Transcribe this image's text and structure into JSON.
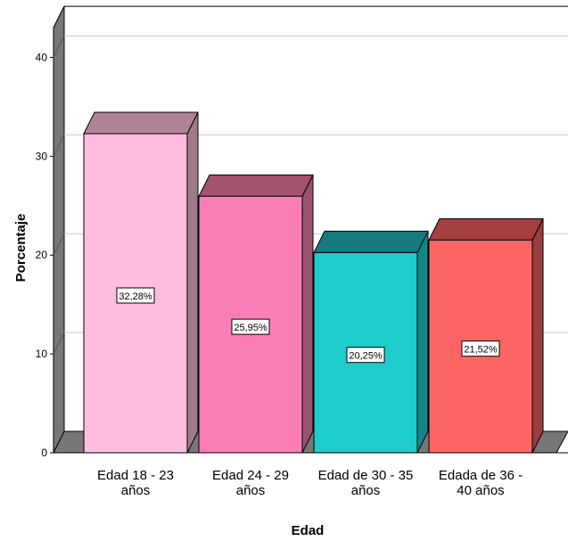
{
  "chart_data": {
    "type": "bar",
    "title": "",
    "xlabel": "Edad",
    "ylabel": "Porcentaje",
    "ylim": [
      0,
      43
    ],
    "yticks": [
      0,
      10,
      20,
      30,
      40
    ],
    "grid": true,
    "three_d": true,
    "categories": [
      [
        "Edad 18 - 23",
        "años"
      ],
      [
        "Edad 24 - 29",
        "años"
      ],
      [
        "Edad de 30 - 35",
        "años"
      ],
      [
        "Edada de 36 -",
        "40 años"
      ]
    ],
    "values": [
      32.28,
      25.95,
      20.25,
      21.52
    ],
    "labels": [
      "32,28%",
      "25,95%",
      "20,25%",
      "21,52%"
    ],
    "colors": {
      "bars": [
        {
          "front": "#FDBDE0",
          "top": "#B08398",
          "side": "#A07A8C"
        },
        {
          "front": "#FB7DB7",
          "top": "#A3536F",
          "side": "#9A5270"
        },
        {
          "front": "#1ECCCC",
          "top": "#157B7E",
          "side": "#168587"
        },
        {
          "front": "#FD6565",
          "top": "#A53F40",
          "side": "#9C3D3E"
        }
      ],
      "wall_side": "#777777",
      "floor": "#777777",
      "grid": "#c8c8c8"
    }
  }
}
